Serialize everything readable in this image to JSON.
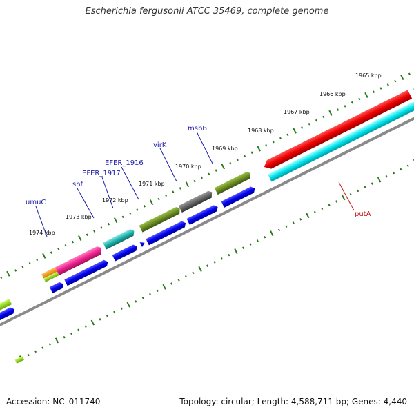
{
  "title": "Escherichia fergusonii ATCC 35469, complete genome",
  "footer": {
    "accession": "Accession: NC_011740",
    "summary": "Topology: circular; Length: 4,588,711 bp; Genes: 4,440"
  },
  "scale_labels": [
    "1965 kbp",
    "1966 kbp",
    "1967 kbp",
    "1968 kbp",
    "1969 kbp",
    "1970 kbp",
    "1971 kbp",
    "1972 kbp",
    "1973 kbp",
    "1974 kbp"
  ],
  "gene_labels": [
    "umuC",
    "shf",
    "EFER_1917",
    "EFER_1916",
    "virK",
    "msbB",
    "putA"
  ],
  "colors": {
    "cds": "#0000ee",
    "backbone": "#8a8a8a",
    "tick": "#2a7a1a",
    "label_line": "#1a1aa8",
    "putA": "#ee0000",
    "putA_cyan": "#00e5ee",
    "magenta": "#f0228c",
    "olive": "#6b8e23",
    "gray_gene": "#666666",
    "teal": "#20b2aa"
  }
}
